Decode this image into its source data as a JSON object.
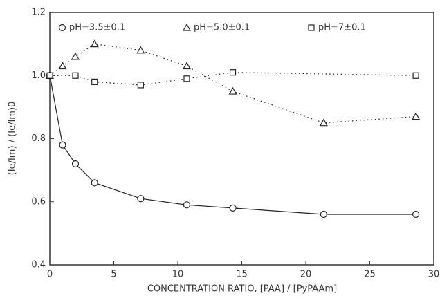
{
  "chart_data": {
    "type": "line",
    "xlabel": "CONCENTRATION RATIO, [PAA] / [PyPAAm]",
    "ylabel": "(Ie/Im) / (Ie/Im)0",
    "xlim": [
      0,
      30
    ],
    "xticks": [
      0,
      5,
      10,
      15,
      20,
      25,
      30
    ],
    "ylim": [
      0.4,
      1.2
    ],
    "yticks": [
      0.4,
      0.6,
      0.8,
      {
        "value": 1.0,
        "label": "1.0"
      },
      1.2
    ],
    "legend": "top",
    "series": [
      {
        "name": "pH=3.5±0.1",
        "color": "#222222",
        "marker": "circle",
        "linestyle": "solid",
        "x": [
          0,
          1,
          2,
          3.5,
          7.1,
          10.7,
          14.3,
          21.4,
          28.6
        ],
        "values": [
          1.0,
          0.78,
          0.72,
          0.66,
          0.61,
          0.59,
          0.58,
          0.56,
          0.56
        ]
      },
      {
        "name": "pH=5.0±0.1",
        "color": "#222222",
        "marker": "triangle",
        "linestyle": "dotted",
        "x": [
          0,
          1,
          2,
          3.5,
          7.1,
          10.7,
          14.3,
          21.4,
          28.6
        ],
        "values": [
          1.0,
          1.03,
          1.06,
          1.1,
          1.08,
          1.03,
          0.95,
          0.85,
          0.87
        ]
      },
      {
        "name": "pH=7±0.1",
        "color": "#222222",
        "marker": "square",
        "linestyle": "dotted",
        "x": [
          0,
          2,
          3.5,
          7.1,
          10.7,
          14.3,
          28.6
        ],
        "values": [
          1.0,
          1.0,
          0.98,
          0.97,
          0.99,
          1.01,
          1.0
        ]
      }
    ]
  }
}
